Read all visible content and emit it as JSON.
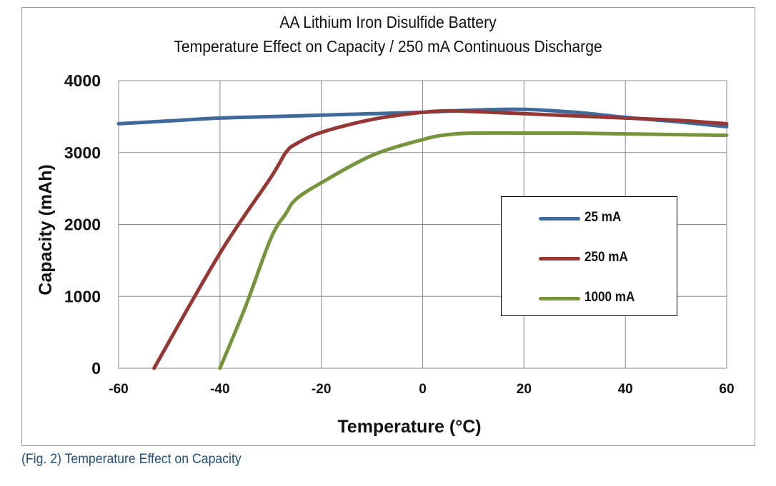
{
  "caption": "(Fig. 2) Temperature Effect on Capacity",
  "chart_data": {
    "type": "line",
    "title": "AA Lithium Iron Disulfide Battery",
    "subtitle": "Temperature Effect on Capacity / 250 mA Continuous Discharge",
    "xlabel": "Temperature (°C)",
    "ylabel": "Capacity (mAh)",
    "xlim": [
      -60,
      60
    ],
    "ylim": [
      0,
      4000
    ],
    "xticks": [
      -60,
      -40,
      -20,
      0,
      20,
      40,
      60
    ],
    "yticks": [
      0,
      1000,
      2000,
      3000,
      4000
    ],
    "grid": true,
    "legend_position": "right",
    "series": [
      {
        "name": "25 mA",
        "color": "#3f6a9b",
        "x": [
          -60,
          -50,
          -40,
          -30,
          -20,
          -10,
          0,
          10,
          20,
          30,
          40,
          50,
          60
        ],
        "y": [
          3400,
          3440,
          3480,
          3500,
          3520,
          3540,
          3560,
          3590,
          3600,
          3560,
          3490,
          3430,
          3360
        ]
      },
      {
        "name": "250 mA",
        "color": "#953735",
        "x": [
          -53,
          -40,
          -30,
          -27,
          -25,
          -20,
          -10,
          0,
          5,
          10,
          20,
          30,
          40,
          50,
          60
        ],
        "y": [
          0,
          1600,
          2650,
          3000,
          3120,
          3280,
          3460,
          3560,
          3580,
          3570,
          3540,
          3510,
          3480,
          3450,
          3400
        ]
      },
      {
        "name": "1000 mA",
        "color": "#77933c",
        "x": [
          -40,
          -35,
          -30,
          -27,
          -25,
          -20,
          -10,
          0,
          5,
          10,
          20,
          30,
          40,
          50,
          60
        ],
        "y": [
          0,
          850,
          1800,
          2150,
          2350,
          2580,
          2960,
          3180,
          3250,
          3270,
          3270,
          3270,
          3260,
          3250,
          3240
        ]
      }
    ]
  }
}
